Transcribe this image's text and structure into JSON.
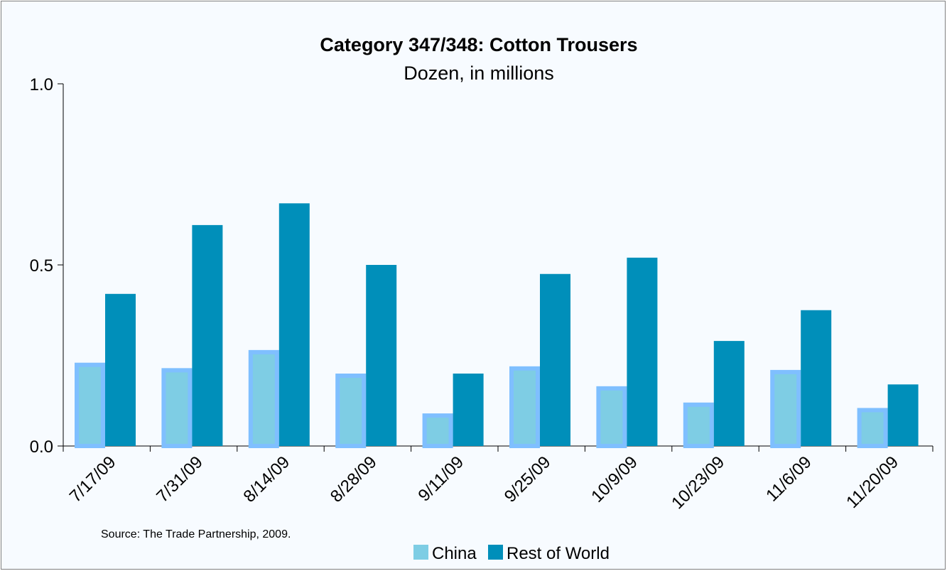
{
  "chart_data": {
    "type": "bar",
    "title": "Category 347/348: Cotton Trousers",
    "subtitle": "Dozen, in millions",
    "categories": [
      "7/17/09",
      "7/31/09",
      "8/14/09",
      "8/28/09",
      "9/11/09",
      "9/25/09",
      "10/9/09",
      "10/23/09",
      "11/6/09",
      "11/20/09"
    ],
    "series": [
      {
        "name": "China",
        "color": "#7ecde4",
        "border_color": "#7fbfff",
        "values": [
          0.23,
          0.215,
          0.265,
          0.2,
          0.09,
          0.22,
          0.165,
          0.12,
          0.21,
          0.105
        ]
      },
      {
        "name": "Rest of World",
        "color": "#008fba",
        "values": [
          0.42,
          0.61,
          0.67,
          0.5,
          0.2,
          0.475,
          0.52,
          0.29,
          0.375,
          0.17
        ]
      }
    ],
    "ylim": [
      0.0,
      1.0
    ],
    "yticks": [
      "0.0",
      "0.5",
      "1.0"
    ],
    "legend_position": "bottom",
    "source": "Source: The Trade Partnership, 2009."
  }
}
